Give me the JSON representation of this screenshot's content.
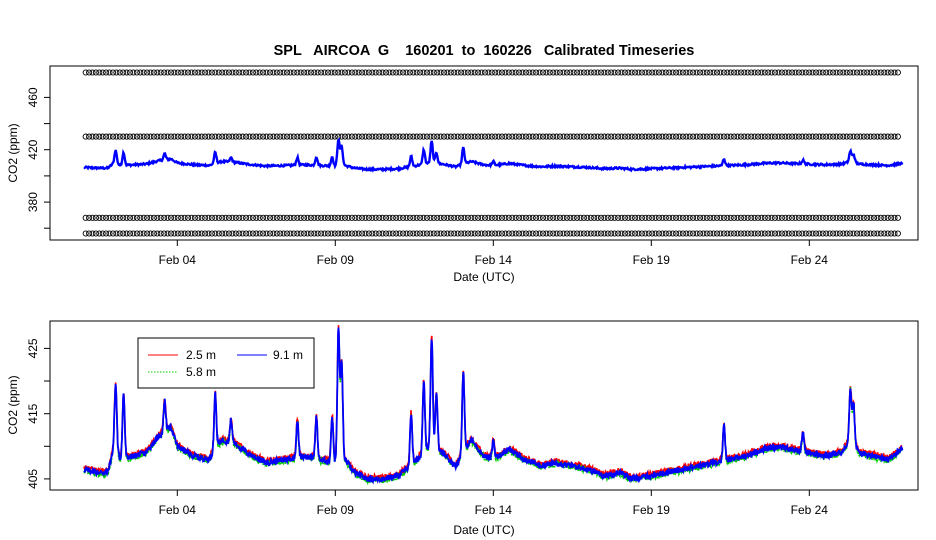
{
  "chart_data": [
    {
      "type": "line",
      "title": "SPL   AIRCOA  G    160201  to  160226   Calibrated Timeseries",
      "xlabel": "Date (UTC)",
      "ylabel": "CO2 (ppm)",
      "xlim": [
        0,
        26.5
      ],
      "ylim": [
        351,
        484
      ],
      "x_tick_values": [
        3,
        8,
        13,
        18,
        23
      ],
      "x_tick_labels": [
        "Feb 04",
        "Feb 09",
        "Feb 14",
        "Feb 19",
        "Feb 24"
      ],
      "y_ticks": [
        380,
        420,
        460
      ],
      "y_tick_labels": [
        "380",
        "420",
        "460"
      ],
      "extra_y_ticks": [
        360,
        400,
        440
      ],
      "calibration_levels": [
        356,
        368,
        430,
        479
      ],
      "calibration_x_range": [
        0.1,
        25.9
      ],
      "series": [
        {
          "name": "2.5 m",
          "color": "#ff0000"
        },
        {
          "name": "5.8 m",
          "color": "#00cc00"
        },
        {
          "name": "9.1 m",
          "color": "#0000ff"
        }
      ]
    },
    {
      "type": "line",
      "title": "",
      "xlabel": "Date (UTC)",
      "ylabel": "CO2 (ppm)",
      "xlim": [
        0,
        26.5
      ],
      "ylim": [
        403.3,
        429.2
      ],
      "x_tick_values": [
        3,
        8,
        13,
        18,
        23
      ],
      "x_tick_labels": [
        "Feb 04",
        "Feb 09",
        "Feb 14",
        "Feb 19",
        "Feb 24"
      ],
      "y_ticks": [
        405,
        415,
        425
      ],
      "y_tick_labels": [
        "405",
        "415",
        "425"
      ],
      "extra_y_ticks": [
        410,
        420
      ],
      "legend": [
        {
          "label": "2.5 m",
          "color": "#ff0000"
        },
        {
          "label": "5.8 m",
          "color": "#00cc00"
        },
        {
          "label": "9.1 m",
          "color": "#0000ff"
        }
      ],
      "baseline": [
        [
          0.0,
          406.5
        ],
        [
          0.5,
          406.0
        ],
        [
          0.8,
          406.0
        ],
        [
          1.0,
          410.0
        ],
        [
          1.2,
          408.0
        ],
        [
          1.6,
          408.5
        ],
        [
          2.0,
          409.0
        ],
        [
          2.4,
          411.5
        ],
        [
          2.8,
          413.0
        ],
        [
          3.0,
          410.0
        ],
        [
          3.5,
          408.5
        ],
        [
          4.0,
          408.0
        ],
        [
          4.4,
          411.0
        ],
        [
          4.8,
          410.5
        ],
        [
          5.2,
          409.0
        ],
        [
          5.8,
          407.5
        ],
        [
          6.5,
          408.0
        ],
        [
          7.0,
          408.5
        ],
        [
          7.5,
          408.0
        ],
        [
          8.0,
          407.5
        ],
        [
          8.3,
          408.0
        ],
        [
          8.6,
          406.0
        ],
        [
          9.0,
          405.0
        ],
        [
          9.5,
          405.0
        ],
        [
          10.0,
          405.5
        ],
        [
          10.5,
          407.5
        ],
        [
          11.0,
          410.0
        ],
        [
          11.4,
          409.0
        ],
        [
          11.8,
          407.0
        ],
        [
          12.3,
          411.0
        ],
        [
          12.7,
          408.5
        ],
        [
          13.0,
          408.0
        ],
        [
          13.5,
          409.5
        ],
        [
          14.0,
          408.0
        ],
        [
          14.5,
          407.0
        ],
        [
          15.0,
          407.5
        ],
        [
          15.5,
          407.0
        ],
        [
          16.0,
          406.5
        ],
        [
          16.5,
          405.5
        ],
        [
          17.0,
          406.0
        ],
        [
          17.4,
          405.0
        ],
        [
          18.0,
          405.5
        ],
        [
          18.5,
          406.0
        ],
        [
          19.0,
          406.5
        ],
        [
          19.5,
          407.0
        ],
        [
          20.0,
          407.5
        ],
        [
          20.5,
          408.0
        ],
        [
          21.0,
          408.5
        ],
        [
          21.5,
          409.5
        ],
        [
          22.0,
          410.0
        ],
        [
          22.5,
          409.5
        ],
        [
          23.0,
          409.0
        ],
        [
          23.5,
          408.5
        ],
        [
          24.0,
          409.0
        ],
        [
          24.3,
          411.0
        ],
        [
          24.6,
          409.0
        ],
        [
          25.0,
          408.5
        ],
        [
          25.5,
          408.0
        ],
        [
          25.9,
          409.5
        ]
      ],
      "spikes": [
        {
          "x": 1.05,
          "peak": 419.5
        },
        {
          "x": 1.3,
          "peak": 418.0
        },
        {
          "x": 2.6,
          "peak": 417.0
        },
        {
          "x": 4.2,
          "peak": 418.0
        },
        {
          "x": 4.7,
          "peak": 414.0
        },
        {
          "x": 6.8,
          "peak": 414.0
        },
        {
          "x": 7.4,
          "peak": 414.5
        },
        {
          "x": 7.9,
          "peak": 414.5
        },
        {
          "x": 8.1,
          "peak": 428.0
        },
        {
          "x": 8.2,
          "peak": 423.0
        },
        {
          "x": 10.4,
          "peak": 415.0
        },
        {
          "x": 10.8,
          "peak": 420.0
        },
        {
          "x": 11.05,
          "peak": 426.5
        },
        {
          "x": 11.2,
          "peak": 418.0
        },
        {
          "x": 12.05,
          "peak": 421.5
        },
        {
          "x": 13.0,
          "peak": 411.0
        },
        {
          "x": 20.3,
          "peak": 413.0
        },
        {
          "x": 22.8,
          "peak": 412.0
        },
        {
          "x": 24.3,
          "peak": 419.0
        },
        {
          "x": 24.4,
          "peak": 416.5
        }
      ]
    }
  ]
}
